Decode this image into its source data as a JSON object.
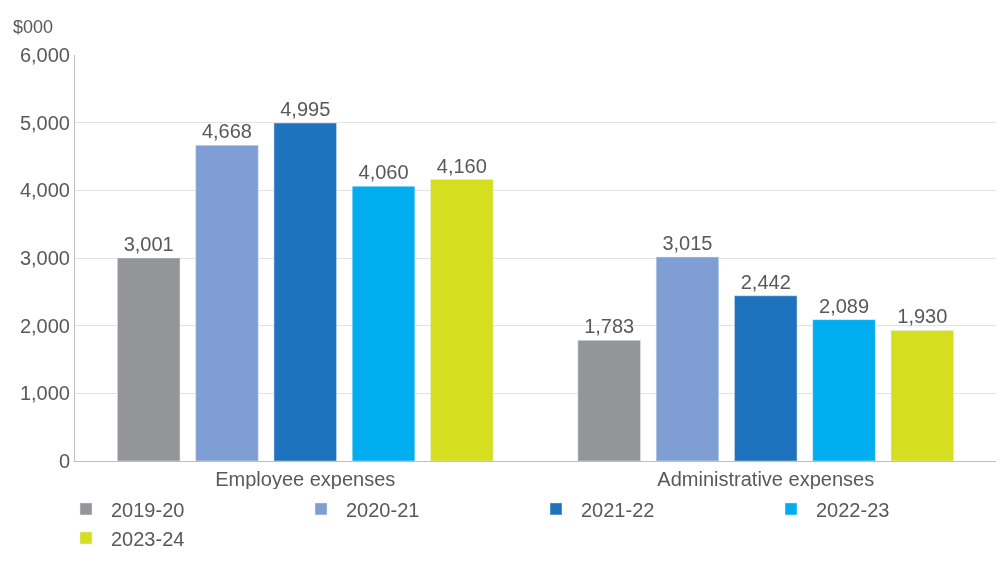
{
  "chart_data": {
    "type": "bar",
    "ylabel": "$000",
    "categories": [
      "Employee expenses",
      "Administrative expenses"
    ],
    "series": [
      {
        "name": "2019-20",
        "color": "#939598",
        "values": [
          3001,
          1783
        ],
        "value_labels": [
          "3,001",
          "1,783"
        ]
      },
      {
        "name": "2020-21",
        "color": "#7f9fd4",
        "values": [
          4668,
          3015
        ],
        "value_labels": [
          "4,668",
          "3,015"
        ]
      },
      {
        "name": "2021-22",
        "color": "#1f73be",
        "values": [
          4995,
          2442
        ],
        "value_labels": [
          "4,995",
          "2,442"
        ]
      },
      {
        "name": "2022-23",
        "color": "#00adef",
        "values": [
          4060,
          2089
        ],
        "value_labels": [
          "4,060",
          "2,089"
        ]
      },
      {
        "name": "2023-24",
        "color": "#d5df20",
        "values": [
          4160,
          1930
        ],
        "value_labels": [
          "4,160",
          "1,930"
        ]
      }
    ],
    "ylim": [
      0,
      6000
    ],
    "yticks": [
      0,
      {
        "value": 1000,
        "label": "1,000"
      },
      {
        "value": 2000,
        "label": "2,000"
      },
      {
        "value": 3000,
        "label": "3,000"
      },
      {
        "value": 4000,
        "label": "4,000"
      },
      {
        "value": 5000,
        "label": "5,000"
      },
      {
        "value": 6000,
        "label": "6,000"
      }
    ],
    "grid": "y",
    "legend": "bottom"
  }
}
